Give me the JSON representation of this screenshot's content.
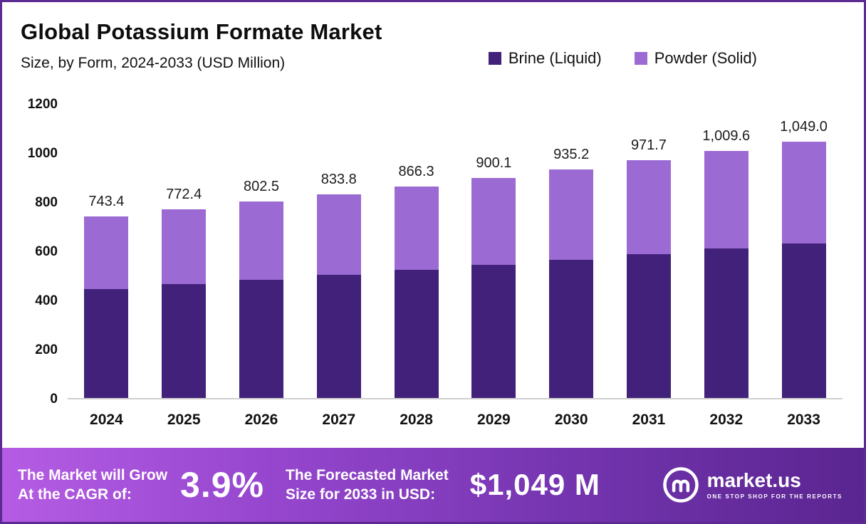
{
  "header": {
    "title": "Global Potassium Formate Market",
    "subtitle": "Size, by Form, 2024-2033 (USD Million)"
  },
  "legend": [
    {
      "label": "Brine (Liquid)",
      "color": "#42217a"
    },
    {
      "label": "Powder (Solid)",
      "color": "#9b6bd3"
    }
  ],
  "chart_data": {
    "type": "bar",
    "stacked": true,
    "title": "Global Potassium Formate Market Size, by Form, 2024-2033 (USD Million)",
    "xlabel": "",
    "ylabel": "",
    "ylim": [
      0,
      1200
    ],
    "yticks": [
      0,
      200,
      400,
      600,
      800,
      1000,
      1200
    ],
    "grid": false,
    "legend_position": "top-right",
    "categories": [
      "2024",
      "2025",
      "2026",
      "2027",
      "2028",
      "2029",
      "2030",
      "2031",
      "2032",
      "2033"
    ],
    "series": [
      {
        "name": "Brine (Liquid)",
        "color": "#42217a",
        "values": [
          446,
          465,
          484,
          504,
          524,
          545,
          565,
          588,
          611,
          632
        ]
      },
      {
        "name": "Powder (Solid)",
        "color": "#9b6bd3",
        "values": [
          297.4,
          307.4,
          318.5,
          329.8,
          342.3,
          355.1,
          370.2,
          383.7,
          398.6,
          417.0
        ]
      }
    ],
    "totals": [
      743.4,
      772.4,
      802.5,
      833.8,
      866.3,
      900.1,
      935.2,
      971.7,
      1009.6,
      1049.0
    ],
    "total_labels": [
      "743.4",
      "772.4",
      "802.5",
      "833.8",
      "866.3",
      "900.1",
      "935.2",
      "971.7",
      "1,009.6",
      "1,049.0"
    ]
  },
  "banner": {
    "cagr_label_line1": "The Market will Grow",
    "cagr_label_line2": "At the CAGR of:",
    "cagr_value": "3.9%",
    "forecast_label_line1": "The Forecasted Market",
    "forecast_label_line2": "Size for 2033 in USD:",
    "forecast_value": "$1,049 M",
    "brand": {
      "name": "market.us",
      "tagline": "ONE STOP SHOP FOR THE REPORTS"
    }
  }
}
